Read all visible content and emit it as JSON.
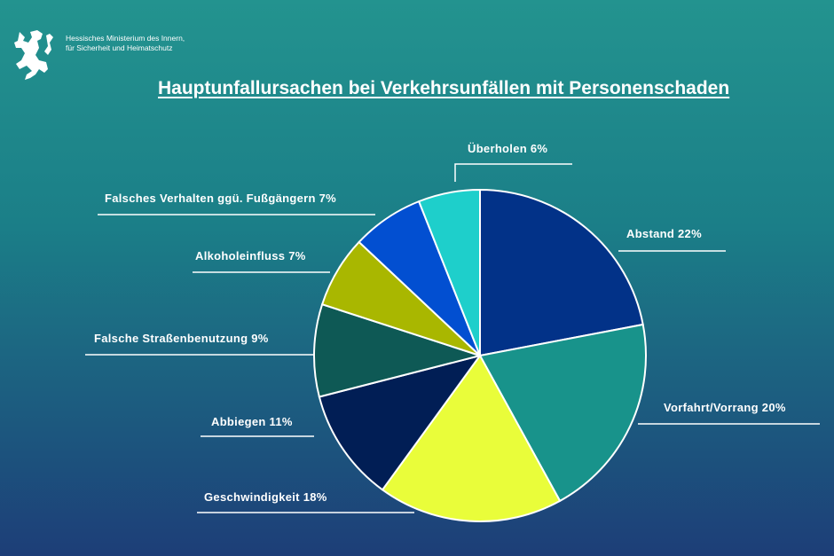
{
  "header": {
    "ministry_line1": "Hessisches Ministerium des Innern,",
    "ministry_line2": "für Sicherheit und Heimatschutz",
    "logo_icon": "hessian-lion-icon"
  },
  "chart_data": {
    "type": "pie",
    "title": "Hauptunfallursachen bei Verkehrsunfällen mit Personenschaden",
    "start": "top",
    "direction": "clockwise",
    "slices": [
      {
        "name": "Abstand",
        "value": 22,
        "label": "Abstand 22%",
        "color": "#023288"
      },
      {
        "name": "Vorfahrt/Vorrang",
        "value": 20,
        "label": "Vorfahrt/Vorrang 20%",
        "color": "#18938b"
      },
      {
        "name": "Geschwindigkeit",
        "value": 18,
        "label": "Geschwindigkeit 18%",
        "color": "#e9fd3a"
      },
      {
        "name": "Abbiegen",
        "value": 11,
        "label": "Abbiegen 11%",
        "color": "#011e55"
      },
      {
        "name": "Falsche Straßenbenutzung",
        "value": 9,
        "label": "Falsche Straßenbenutzung 9%",
        "color": "#0e5955"
      },
      {
        "name": "Alkoholeinfluss",
        "value": 7,
        "label": "Alkoholeinfluss 7%",
        "color": "#a9b700"
      },
      {
        "name": "Falsches Verhalten ggü. Fußgängern",
        "value": 7,
        "label": "Falsches Verhalten ggü. Fußgängern 7%",
        "color": "#024fd1"
      },
      {
        "name": "Überholen",
        "value": 6,
        "label": "Überholen 6%",
        "color": "#1ecfcb"
      }
    ]
  }
}
